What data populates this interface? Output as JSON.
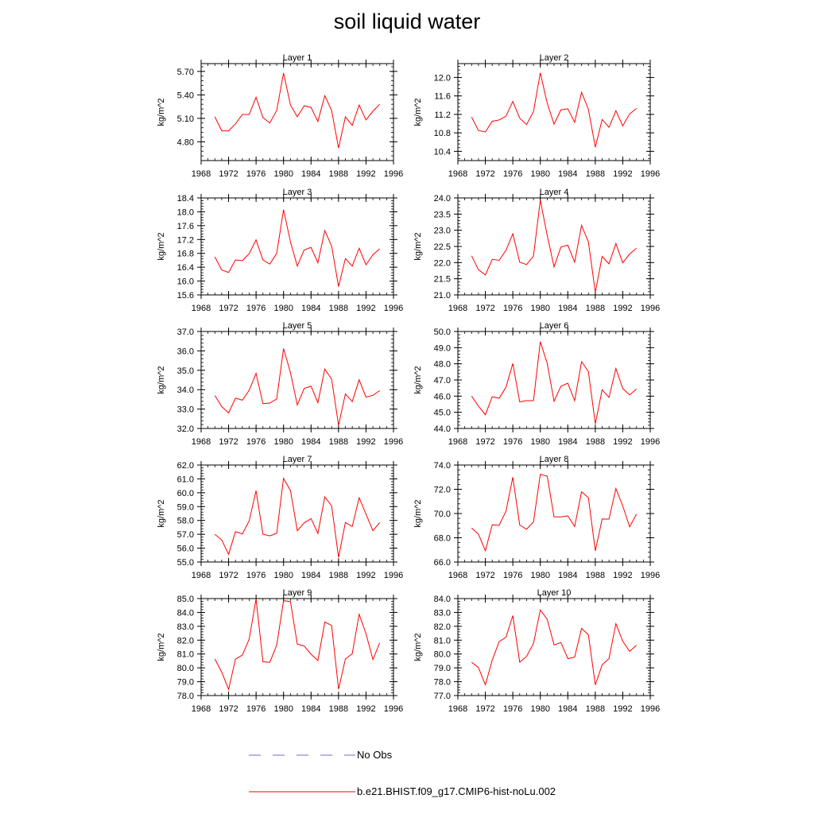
{
  "title": "soil liquid water",
  "legend": {
    "items": [
      {
        "label": "No Obs",
        "color": "#6b6bd6",
        "style": "dashed"
      },
      {
        "label": "b.e21.BHIST.f09_g17.CMIP6-hist-noLu.002",
        "color": "#ff0000",
        "style": "solid"
      }
    ]
  },
  "chart_data": [
    {
      "type": "line",
      "title": "Layer 1",
      "ylabel": "kg/m^2",
      "xlim": [
        1968,
        1996
      ],
      "xticks": [
        1968,
        1972,
        1976,
        1980,
        1984,
        1988,
        1992,
        1996
      ],
      "ylim": [
        4.56,
        5.8
      ],
      "yticks": [
        4.8,
        5.1,
        5.4,
        5.7
      ],
      "ytick_labels": [
        "4.80",
        "5.10",
        "5.40",
        "5.70"
      ],
      "series": [
        {
          "name": "b.e21.BHIST.f09_g17.CMIP6-hist-noLu.002",
          "x": [
            1970,
            1971,
            1972,
            1973,
            1974,
            1975,
            1976,
            1977,
            1978,
            1979,
            1980,
            1981,
            1982,
            1983,
            1984,
            1985,
            1986,
            1987,
            1988,
            1989,
            1990,
            1991,
            1992,
            1993,
            1994
          ],
          "values": [
            5.12,
            4.94,
            4.94,
            5.03,
            5.15,
            5.15,
            5.37,
            5.11,
            5.04,
            5.2,
            5.68,
            5.27,
            5.12,
            5.26,
            5.24,
            5.06,
            5.39,
            5.2,
            4.72,
            5.12,
            5.01,
            5.27,
            5.08,
            5.19,
            5.28
          ]
        }
      ]
    },
    {
      "type": "line",
      "title": "Layer 2",
      "ylabel": "kg/m^2",
      "xlim": [
        1968,
        1996
      ],
      "xticks": [
        1968,
        1972,
        1976,
        1980,
        1984,
        1988,
        1992,
        1996
      ],
      "ylim": [
        10.2,
        12.3
      ],
      "yticks": [
        10.4,
        10.8,
        11.2,
        11.6,
        12.0
      ],
      "ytick_labels": [
        "10.4",
        "10.8",
        "11.2",
        "11.6",
        "12.0"
      ],
      "series": [
        {
          "name": "b.e21.BHIST.f09_g17.CMIP6-hist-noLu.002",
          "x": [
            1970,
            1971,
            1972,
            1973,
            1974,
            1975,
            1976,
            1977,
            1978,
            1979,
            1980,
            1981,
            1982,
            1983,
            1984,
            1985,
            1986,
            1987,
            1988,
            1989,
            1990,
            1991,
            1992,
            1993,
            1994
          ],
          "values": [
            11.14,
            10.85,
            10.82,
            11.05,
            11.08,
            11.16,
            11.48,
            11.12,
            10.98,
            11.26,
            12.1,
            11.44,
            10.99,
            11.3,
            11.32,
            11.03,
            11.68,
            11.31,
            10.49,
            11.09,
            10.92,
            11.28,
            10.95,
            11.21,
            11.33
          ]
        }
      ]
    },
    {
      "type": "line",
      "title": "Layer 3",
      "ylabel": "kg/m^2",
      "xlim": [
        1968,
        1996
      ],
      "xticks": [
        1968,
        1972,
        1976,
        1980,
        1984,
        1988,
        1992,
        1996
      ],
      "ylim": [
        15.6,
        18.4
      ],
      "yticks": [
        15.6,
        16.0,
        16.4,
        16.8,
        17.2,
        17.6,
        18.0,
        18.4
      ],
      "ytick_labels": [
        "15.6",
        "16.0",
        "16.4",
        "16.8",
        "17.2",
        "17.6",
        "18.0",
        "18.4"
      ],
      "series": [
        {
          "name": "b.e21.BHIST.f09_g17.CMIP6-hist-noLu.002",
          "x": [
            1970,
            1971,
            1972,
            1973,
            1974,
            1975,
            1976,
            1977,
            1978,
            1979,
            1980,
            1981,
            1982,
            1983,
            1984,
            1985,
            1986,
            1987,
            1988,
            1989,
            1990,
            1991,
            1992,
            1993,
            1994
          ],
          "values": [
            16.7,
            16.32,
            16.25,
            16.61,
            16.59,
            16.79,
            17.19,
            16.61,
            16.49,
            16.8,
            18.06,
            17.13,
            16.43,
            16.9,
            16.97,
            16.53,
            17.46,
            17.01,
            15.84,
            16.65,
            16.43,
            16.95,
            16.47,
            16.76,
            16.93
          ]
        }
      ]
    },
    {
      "type": "line",
      "title": "Layer 4",
      "ylabel": "kg/m^2",
      "xlim": [
        1968,
        1996
      ],
      "xticks": [
        1968,
        1972,
        1976,
        1980,
        1984,
        1988,
        1992,
        1996
      ],
      "ylim": [
        21.0,
        24.0
      ],
      "yticks": [
        21.0,
        21.5,
        22.0,
        22.5,
        23.0,
        23.5,
        24.0
      ],
      "ytick_labels": [
        "21.0",
        "21.5",
        "22.0",
        "22.5",
        "23.0",
        "23.5",
        "24.0"
      ],
      "series": [
        {
          "name": "b.e21.BHIST.f09_g17.CMIP6-hist-noLu.002",
          "x": [
            1970,
            1971,
            1972,
            1973,
            1974,
            1975,
            1976,
            1977,
            1978,
            1979,
            1980,
            1981,
            1982,
            1983,
            1984,
            1985,
            1986,
            1987,
            1988,
            1989,
            1990,
            1991,
            1992,
            1993,
            1994
          ],
          "values": [
            22.21,
            21.78,
            21.62,
            22.1,
            22.07,
            22.38,
            22.89,
            22.01,
            21.94,
            22.2,
            23.93,
            22.84,
            21.87,
            22.48,
            22.54,
            22.01,
            23.15,
            22.64,
            21.08,
            22.19,
            21.96,
            22.59,
            21.99,
            22.27,
            22.44
          ]
        }
      ]
    },
    {
      "type": "line",
      "title": "Layer 5",
      "ylabel": "kg/m^2",
      "xlim": [
        1968,
        1996
      ],
      "xticks": [
        1968,
        1972,
        1976,
        1980,
        1984,
        1988,
        1992,
        1996
      ],
      "ylim": [
        32.0,
        37.0
      ],
      "yticks": [
        32.0,
        33.0,
        34.0,
        35.0,
        36.0,
        37.0
      ],
      "ytick_labels": [
        "32.0",
        "33.0",
        "34.0",
        "35.0",
        "36.0",
        "37.0"
      ],
      "series": [
        {
          "name": "b.e21.BHIST.f09_g17.CMIP6-hist-noLu.002",
          "x": [
            1970,
            1971,
            1972,
            1973,
            1974,
            1975,
            1976,
            1977,
            1978,
            1979,
            1980,
            1981,
            1982,
            1983,
            1984,
            1985,
            1986,
            1987,
            1988,
            1989,
            1990,
            1991,
            1992,
            1993,
            1994
          ],
          "values": [
            33.7,
            33.13,
            32.8,
            33.56,
            33.46,
            33.97,
            34.84,
            33.28,
            33.31,
            33.52,
            36.12,
            34.88,
            33.21,
            34.06,
            34.18,
            33.33,
            35.06,
            34.54,
            32.17,
            33.78,
            33.38,
            34.51,
            33.62,
            33.71,
            33.95
          ]
        }
      ]
    },
    {
      "type": "line",
      "title": "Layer 6",
      "ylabel": "kg/m^2",
      "xlim": [
        1968,
        1996
      ],
      "xticks": [
        1968,
        1972,
        1976,
        1980,
        1984,
        1988,
        1992,
        1996
      ],
      "ylim": [
        44.0,
        50.0
      ],
      "yticks": [
        44.0,
        45.0,
        46.0,
        47.0,
        48.0,
        49.0,
        50.0
      ],
      "ytick_labels": [
        "44.0",
        "45.0",
        "46.0",
        "47.0",
        "48.0",
        "49.0",
        "50.0"
      ],
      "series": [
        {
          "name": "b.e21.BHIST.f09_g17.CMIP6-hist-noLu.002",
          "x": [
            1970,
            1971,
            1972,
            1973,
            1974,
            1975,
            1976,
            1977,
            1978,
            1979,
            1980,
            1981,
            1982,
            1983,
            1984,
            1985,
            1986,
            1987,
            1988,
            1989,
            1990,
            1991,
            1992,
            1993,
            1994
          ],
          "values": [
            46.0,
            45.38,
            44.85,
            45.96,
            45.87,
            46.55,
            48.02,
            45.65,
            45.72,
            45.72,
            49.37,
            48.03,
            45.68,
            46.61,
            46.8,
            45.72,
            48.13,
            47.52,
            44.28,
            46.4,
            45.92,
            47.71,
            46.47,
            46.08,
            46.44
          ]
        }
      ]
    },
    {
      "type": "line",
      "title": "Layer 7",
      "ylabel": "kg/m^2",
      "xlim": [
        1968,
        1996
      ],
      "xticks": [
        1968,
        1972,
        1976,
        1980,
        1984,
        1988,
        1992,
        1996
      ],
      "ylim": [
        55.0,
        62.0
      ],
      "yticks": [
        55.0,
        56.0,
        57.0,
        58.0,
        59.0,
        60.0,
        61.0,
        62.0
      ],
      "ytick_labels": [
        "55.0",
        "56.0",
        "57.0",
        "58.0",
        "59.0",
        "60.0",
        "61.0",
        "62.0"
      ],
      "series": [
        {
          "name": "b.e21.BHIST.f09_g17.CMIP6-hist-noLu.002",
          "x": [
            1970,
            1971,
            1972,
            1973,
            1974,
            1975,
            1976,
            1977,
            1978,
            1979,
            1980,
            1981,
            1982,
            1983,
            1984,
            1985,
            1986,
            1987,
            1988,
            1989,
            1990,
            1991,
            1992,
            1993,
            1994
          ],
          "values": [
            57.0,
            56.59,
            55.56,
            57.19,
            57.03,
            57.97,
            60.15,
            57.0,
            56.89,
            57.07,
            61.04,
            60.16,
            57.26,
            57.82,
            58.14,
            57.06,
            59.7,
            59.05,
            55.34,
            57.85,
            57.56,
            59.64,
            58.46,
            57.26,
            57.84
          ]
        }
      ]
    },
    {
      "type": "line",
      "title": "Layer 8",
      "ylabel": "kg/m^2",
      "xlim": [
        1968,
        1996
      ],
      "xticks": [
        1968,
        1972,
        1976,
        1980,
        1984,
        1988,
        1992,
        1996
      ],
      "ylim": [
        66.0,
        74.0
      ],
      "yticks": [
        66.0,
        68.0,
        70.0,
        72.0,
        74.0
      ],
      "ytick_labels": [
        "66.0",
        "68.0",
        "70.0",
        "72.0",
        "74.0"
      ],
      "series": [
        {
          "name": "b.e21.BHIST.f09_g17.CMIP6-hist-noLu.002",
          "x": [
            1970,
            1971,
            1972,
            1973,
            1974,
            1975,
            1976,
            1977,
            1978,
            1979,
            1980,
            1981,
            1982,
            1983,
            1984,
            1985,
            1986,
            1987,
            1988,
            1989,
            1990,
            1991,
            1992,
            1993,
            1994
          ],
          "values": [
            68.8,
            68.29,
            66.93,
            69.07,
            69.02,
            70.19,
            73.0,
            69.05,
            68.7,
            69.31,
            73.24,
            73.08,
            69.72,
            69.72,
            69.81,
            68.93,
            71.79,
            71.31,
            66.92,
            69.55,
            69.54,
            72.06,
            70.62,
            68.91,
            69.95
          ]
        }
      ]
    },
    {
      "type": "line",
      "title": "Layer 9",
      "ylabel": "kg/m^2",
      "xlim": [
        1968,
        1996
      ],
      "xticks": [
        1968,
        1972,
        1976,
        1980,
        1984,
        1988,
        1992,
        1996
      ],
      "ylim": [
        78.0,
        85.0
      ],
      "yticks": [
        78.0,
        79.0,
        80.0,
        81.0,
        82.0,
        83.0,
        84.0,
        85.0
      ],
      "ytick_labels": [
        "78.0",
        "79.0",
        "80.0",
        "81.0",
        "82.0",
        "83.0",
        "84.0",
        "85.0"
      ],
      "series": [
        {
          "name": "b.e21.BHIST.f09_g17.CMIP6-hist-noLu.002",
          "x": [
            1970,
            1971,
            1972,
            1973,
            1974,
            1975,
            1976,
            1977,
            1978,
            1979,
            1980,
            1981,
            1982,
            1983,
            1984,
            1985,
            1986,
            1987,
            1988,
            1989,
            1990,
            1991,
            1992,
            1993,
            1994
          ],
          "values": [
            80.64,
            79.69,
            78.44,
            80.63,
            80.92,
            82.08,
            84.98,
            80.44,
            80.4,
            81.64,
            84.85,
            84.78,
            81.71,
            81.58,
            80.98,
            80.53,
            83.31,
            83.06,
            78.46,
            80.64,
            81.01,
            83.87,
            82.47,
            80.6,
            81.81
          ]
        }
      ]
    },
    {
      "type": "line",
      "title": "Layer 10",
      "ylabel": "kg/m^2",
      "xlim": [
        1968,
        1996
      ],
      "xticks": [
        1968,
        1972,
        1976,
        1980,
        1984,
        1988,
        1992,
        1996
      ],
      "ylim": [
        77.0,
        84.0
      ],
      "yticks": [
        77.0,
        78.0,
        79.0,
        80.0,
        81.0,
        82.0,
        83.0,
        84.0
      ],
      "ytick_labels": [
        "77.0",
        "78.0",
        "79.0",
        "80.0",
        "81.0",
        "82.0",
        "83.0",
        "84.0"
      ],
      "series": [
        {
          "name": "b.e21.BHIST.f09_g17.CMIP6-hist-noLu.002",
          "x": [
            1970,
            1971,
            1972,
            1973,
            1974,
            1975,
            1976,
            1977,
            1978,
            1979,
            1980,
            1981,
            1982,
            1983,
            1984,
            1985,
            1986,
            1987,
            1988,
            1989,
            1990,
            1991,
            1992,
            1993,
            1994
          ],
          "values": [
            79.4,
            79.02,
            77.77,
            79.56,
            80.89,
            81.21,
            82.77,
            79.41,
            79.83,
            80.75,
            83.18,
            82.5,
            80.65,
            80.83,
            79.67,
            79.77,
            81.85,
            81.39,
            77.77,
            79.22,
            79.67,
            82.18,
            80.93,
            80.19,
            80.63
          ]
        }
      ]
    }
  ]
}
